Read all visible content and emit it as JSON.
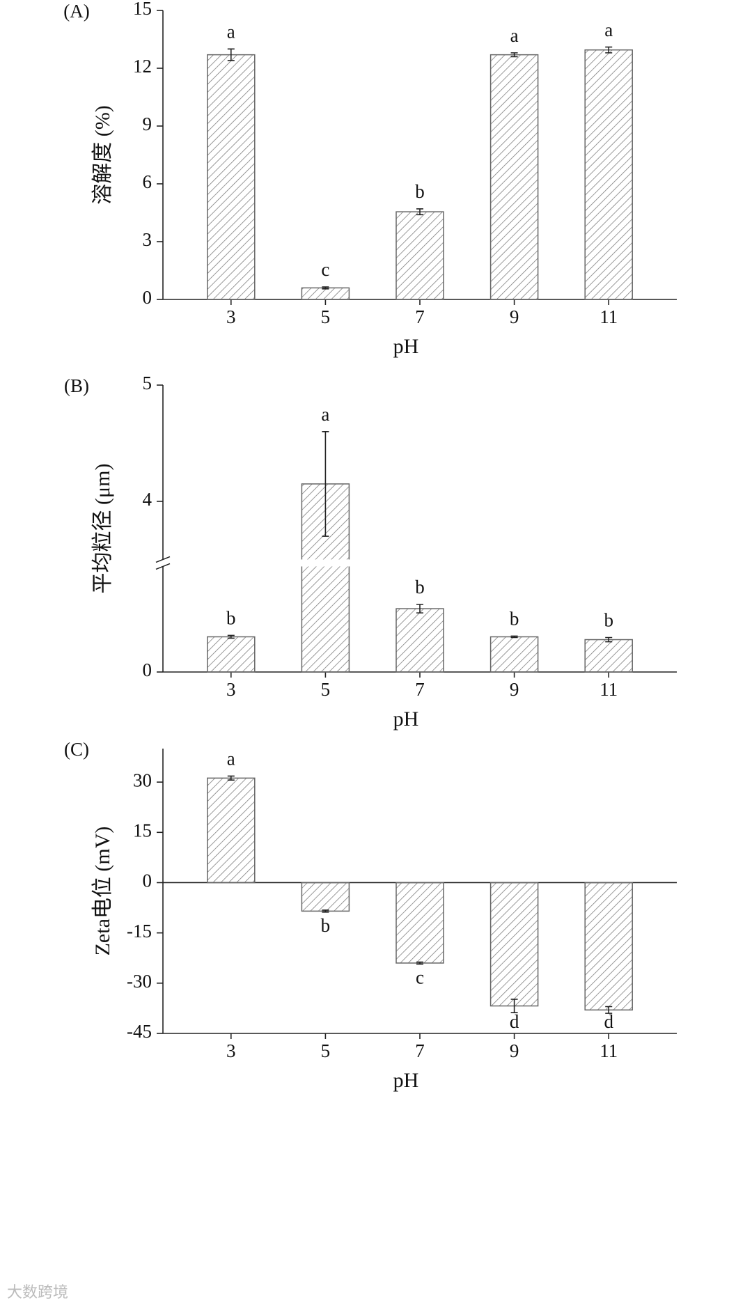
{
  "chart_data": [
    {
      "type": "bar",
      "panel_label": "(A)",
      "ylabel": "溶解度 (%)",
      "xlabel": "pH",
      "categories": [
        "3",
        "5",
        "7",
        "9",
        "11"
      ],
      "values": [
        12.7,
        0.6,
        4.55,
        12.7,
        12.95
      ],
      "errors": [
        0.3,
        0.05,
        0.15,
        0.1,
        0.15
      ],
      "significance": [
        "a",
        "c",
        "b",
        "a",
        "a"
      ],
      "color": "#666666",
      "ylim": [
        0,
        15
      ],
      "yticks": [
        0,
        3,
        6,
        9,
        12,
        15
      ]
    },
    {
      "type": "bar",
      "panel_label": "(B)",
      "ylabel": "平均粒径 (μm)",
      "xlabel": "pH",
      "categories": [
        "3",
        "5",
        "7",
        "9",
        "11"
      ],
      "values": [
        0.5,
        4.15,
        0.9,
        0.5,
        0.46
      ],
      "errors": [
        0.02,
        0.45,
        0.06,
        0.01,
        0.03
      ],
      "significance": [
        "b",
        "a",
        "b",
        "b",
        "b"
      ],
      "color": "#666666",
      "ylim": [
        0,
        5
      ],
      "ybreak": [
        1.5,
        3.5
      ],
      "yticks": [
        0,
        4,
        5
      ]
    },
    {
      "type": "bar",
      "panel_label": "(C)",
      "ylabel": "Zeta电位 (mV)",
      "xlabel": "pH",
      "categories": [
        "3",
        "5",
        "7",
        "9",
        "11"
      ],
      "values": [
        31.2,
        -8.5,
        -24,
        -36.8,
        -38
      ],
      "errors": [
        0.6,
        0.3,
        0.3,
        2,
        1
      ],
      "significance": [
        "a",
        "b",
        "c",
        "d",
        "d"
      ],
      "color": "#666666",
      "ylim": [
        -45,
        40
      ],
      "yticks": [
        -45,
        -30,
        -15,
        0,
        15,
        30
      ]
    }
  ],
  "watermark": "大数跨境"
}
